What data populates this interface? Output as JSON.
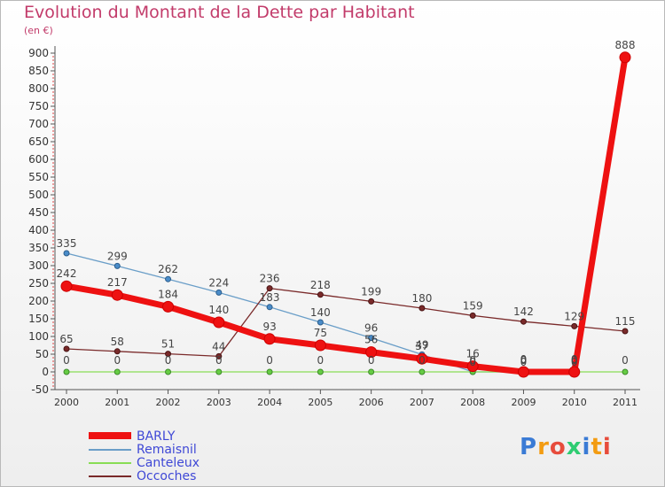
{
  "header": {
    "title": "Evolution du Montant de la Dette par Habitant",
    "unit": "(en €)"
  },
  "logo": {
    "text": "Proxiti",
    "colors": [
      "#3a7bd5",
      "#f39c12",
      "#e74c3c",
      "#2ecc71",
      "#3a7bd5",
      "#f39c12",
      "#e74c3c"
    ]
  },
  "chart_data": {
    "type": "line",
    "title": "Evolution du Montant de la Dette par Habitant",
    "subtitle": "(en €)",
    "xlabel": "",
    "ylabel": "",
    "x": [
      "2000",
      "2001",
      "2002",
      "2003",
      "2004",
      "2005",
      "2006",
      "2007",
      "2008",
      "2009",
      "2010",
      "2011"
    ],
    "ylim": [
      -50,
      900
    ],
    "yticks": [
      -50,
      0,
      50,
      100,
      150,
      200,
      250,
      300,
      350,
      400,
      450,
      500,
      550,
      600,
      650,
      700,
      750,
      800,
      850,
      900
    ],
    "grid": false,
    "legend_position": "bottom-left",
    "series": [
      {
        "name": "BARLY",
        "color": "#ee1111",
        "values": [
          242,
          217,
          184,
          140,
          93,
          75,
          56,
          37,
          16,
          0,
          0,
          888
        ],
        "labels": [
          "242",
          "217",
          "184",
          "140",
          "93",
          "75",
          "56",
          "37",
          "16",
          "0",
          "0",
          "888"
        ]
      },
      {
        "name": "Remaisnil",
        "color": "#6a9ec8",
        "values": [
          335,
          299,
          262,
          224,
          183,
          140,
          96,
          49,
          0,
          0,
          0,
          null
        ],
        "labels": [
          "335",
          "299",
          "262",
          "224",
          "183",
          "140",
          "96",
          "49",
          "0",
          "0",
          "0",
          ""
        ]
      },
      {
        "name": "Canteleux",
        "color": "#88dd55",
        "values": [
          0,
          0,
          0,
          0,
          0,
          0,
          0,
          0,
          0,
          0,
          0,
          0
        ],
        "labels": [
          "0",
          "0",
          "0",
          "0",
          "0",
          "0",
          "0",
          "0",
          "0",
          "0",
          "0",
          "0"
        ]
      },
      {
        "name": "Occoches",
        "color": "#7a2a2a",
        "values": [
          65,
          58,
          51,
          44,
          236,
          218,
          199,
          180,
          159,
          142,
          129,
          115
        ],
        "labels": [
          "65",
          "58",
          "51",
          "44",
          "236",
          "218",
          "199",
          "180",
          "159",
          "142",
          "129",
          "115"
        ]
      }
    ]
  }
}
